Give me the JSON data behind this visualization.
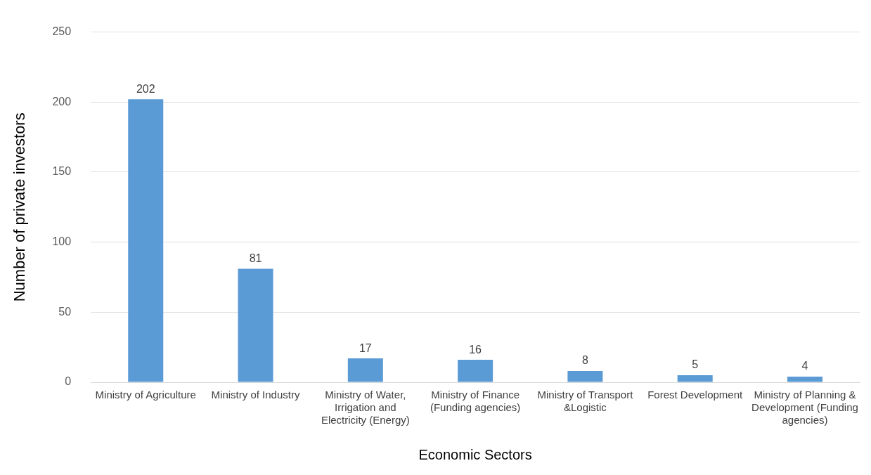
{
  "chart_data": {
    "type": "bar",
    "xlabel": "Economic Sectors",
    "ylabel": "Number of private investors",
    "categories": [
      "Ministry of Agriculture",
      "Ministry of Industry",
      "Ministry of Water, Irrigation and Electricity (Energy)",
      "Ministry of Finance (Funding agencies)",
      "Ministry of Transport &Logistic",
      "Forest Development",
      "Ministry of Planning & Development (Funding agencies)"
    ],
    "values": [
      202,
      81,
      17,
      16,
      8,
      5,
      4
    ],
    "color": "#5b9bd5",
    "ylim": [
      0,
      250
    ],
    "yticks": [
      0,
      50,
      100,
      150,
      200,
      250
    ],
    "grid": "y",
    "data_labels": true
  }
}
